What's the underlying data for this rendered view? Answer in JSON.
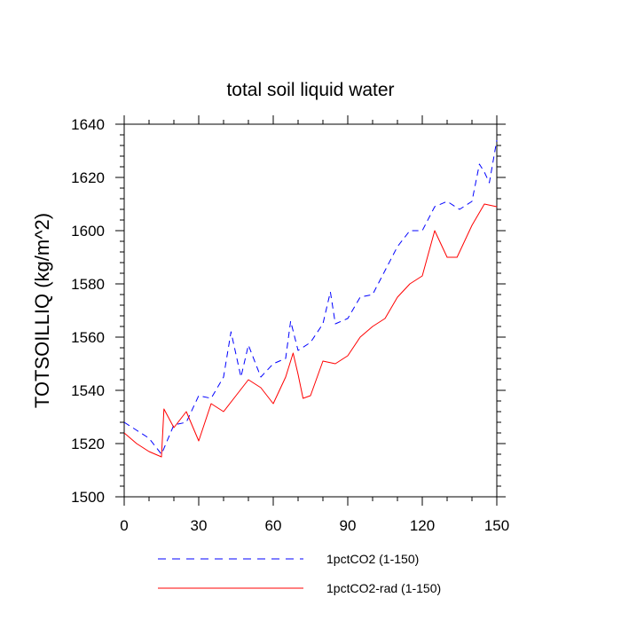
{
  "chart_data": {
    "type": "line",
    "title": "total soil liquid water",
    "xlabel": "",
    "ylabel": "TOTSOILLIQ  (kg/m^2)",
    "xlim": [
      0,
      150
    ],
    "ylim": [
      1500,
      1640
    ],
    "x_ticks": [
      0,
      30,
      60,
      90,
      120,
      150
    ],
    "y_ticks": [
      1500,
      1520,
      1540,
      1560,
      1580,
      1600,
      1620,
      1640
    ],
    "x_tick_labels": [
      "0",
      "30",
      "60",
      "90",
      "120",
      "150"
    ],
    "y_tick_labels": [
      "1500",
      "1520",
      "1540",
      "1560",
      "1580",
      "1600",
      "1620",
      "1640"
    ],
    "grid": false,
    "legend_placement": "bottom",
    "series": [
      {
        "name": "1pctCO2 (1-150)",
        "color": "#0000ff",
        "dash": "dashed",
        "x": [
          0,
          5,
          10,
          15,
          20,
          25,
          30,
          35,
          40,
          43,
          47,
          50,
          55,
          60,
          65,
          67,
          70,
          75,
          80,
          83,
          85,
          90,
          95,
          100,
          105,
          110,
          115,
          120,
          125,
          130,
          135,
          140,
          143,
          145,
          147,
          150
        ],
        "values": [
          1528,
          1525,
          1522,
          1516,
          1527,
          1528,
          1538,
          1537,
          1545,
          1562,
          1545,
          1557,
          1545,
          1550,
          1552,
          1566,
          1555,
          1558,
          1565,
          1577,
          1565,
          1567,
          1575,
          1576,
          1585,
          1594,
          1600,
          1600,
          1609,
          1611,
          1608,
          1611,
          1625,
          1622,
          1618,
          1634
        ]
      },
      {
        "name": "1pctCO2-rad (1-150)",
        "color": "#ff0000",
        "dash": "solid",
        "x": [
          0,
          5,
          10,
          15,
          16,
          20,
          25,
          30,
          35,
          40,
          45,
          50,
          55,
          60,
          65,
          68,
          70,
          72,
          75,
          80,
          85,
          90,
          95,
          100,
          105,
          110,
          115,
          120,
          125,
          130,
          134,
          140,
          145,
          150
        ],
        "values": [
          1524,
          1520,
          1517,
          1515,
          1533,
          1526,
          1532,
          1521,
          1535,
          1532,
          1538,
          1544,
          1541,
          1535,
          1545,
          1554,
          1546,
          1537,
          1538,
          1551,
          1550,
          1553,
          1560,
          1564,
          1567,
          1575,
          1580,
          1583,
          1600,
          1590,
          1590,
          1602,
          1610,
          1609
        ]
      }
    ]
  }
}
